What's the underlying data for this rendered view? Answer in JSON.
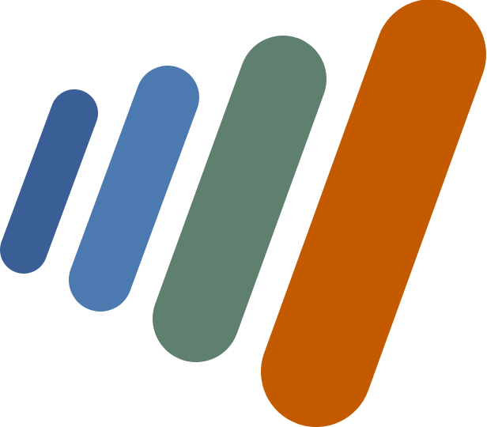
{
  "logo": {
    "colors": {
      "bar_1": "#3a5f96",
      "bar_2": "#4d79b1",
      "bar_3": "#5f7f6f",
      "bar_4": "#c45a00"
    }
  }
}
